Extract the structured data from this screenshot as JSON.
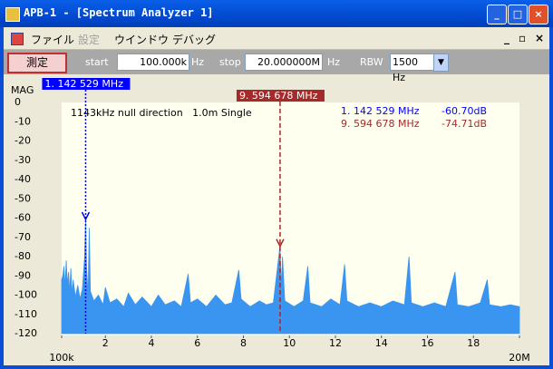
{
  "window": {
    "title": "APB-1 - [Spectrum Analyzer 1]"
  },
  "menu": [
    "ファイル",
    "設定",
    "ウインドウ",
    "デバッグ"
  ],
  "toolbar": {
    "button": "測定",
    "start_label": "start",
    "start_value": "100.000k",
    "start_unit": "Hz",
    "stop_label": "stop",
    "stop_value": "20.000000M",
    "stop_unit": "Hz",
    "rbw_label": "RBW",
    "rbw_value": "1500 Hz"
  },
  "chart_data": {
    "type": "area",
    "y_label": "MAG",
    "annotation": "1143kHz null direction   1.0m Single",
    "color": "#3a95f0",
    "xlim": [
      0.1,
      20
    ],
    "ylim": [
      -120,
      0
    ],
    "yticks": [
      0,
      -10,
      -20,
      -30,
      -40,
      -50,
      -60,
      -70,
      -80,
      -90,
      -100,
      -110,
      -120
    ],
    "xticks": [
      {
        "value": 0.1,
        "label": "100k"
      },
      2,
      4,
      6,
      8,
      10,
      12,
      14,
      16,
      18,
      {
        "value": 20,
        "label": "20M"
      }
    ],
    "x": [
      0.1,
      0.15,
      0.2,
      0.25,
      0.3,
      0.35,
      0.4,
      0.45,
      0.5,
      0.55,
      0.6,
      0.7,
      0.8,
      0.9,
      1.0,
      1.1,
      1.14,
      1.18,
      1.25,
      1.3,
      1.35,
      1.5,
      1.7,
      1.9,
      2.0,
      2.2,
      2.5,
      2.8,
      3.0,
      3.3,
      3.6,
      4.0,
      4.3,
      4.6,
      5.0,
      5.3,
      5.6,
      5.7,
      6.0,
      6.4,
      6.8,
      7.2,
      7.5,
      7.8,
      7.9,
      8.3,
      8.7,
      9.0,
      9.3,
      9.59,
      9.65,
      9.7,
      9.8,
      10.2,
      10.6,
      10.8,
      10.9,
      11.4,
      11.8,
      12.2,
      12.4,
      12.5,
      13.0,
      13.5,
      14.0,
      14.5,
      15.0,
      15.2,
      15.3,
      15.8,
      16.3,
      16.8,
      17.2,
      17.3,
      17.8,
      18.3,
      18.6,
      18.7,
      19.2,
      19.6,
      20.0
    ],
    "values": [
      -92,
      -90,
      -85,
      -96,
      -82,
      -95,
      -88,
      -99,
      -86,
      -100,
      -92,
      -101,
      -95,
      -102,
      -97,
      -80,
      -60.7,
      -85,
      -100,
      -65,
      -98,
      -103,
      -100,
      -105,
      -96,
      -104,
      -102,
      -106,
      -99,
      -105,
      -101,
      -106,
      -100,
      -105,
      -103,
      -106,
      -89,
      -104,
      -102,
      -106,
      -100,
      -105,
      -104,
      -87,
      -102,
      -106,
      -103,
      -105,
      -104,
      -74.7,
      -96,
      -80,
      -103,
      -106,
      -103,
      -85,
      -104,
      -106,
      -102,
      -105,
      -84,
      -103,
      -106,
      -104,
      -106,
      -103,
      -105,
      -80,
      -104,
      -106,
      -104,
      -106,
      -88,
      -105,
      -106,
      -104,
      -92,
      -105,
      -106,
      -105,
      -106
    ],
    "markers": [
      {
        "label": "1. 142 529 MHz",
        "freq": 1.142529,
        "level": -60.7,
        "level_label": "-60.70dB",
        "color": "#0000ff"
      },
      {
        "label": "9. 594 678 MHz",
        "freq": 9.594678,
        "level": -74.71,
        "level_label": "-74.71dB",
        "color": "#a52a2a"
      }
    ]
  }
}
